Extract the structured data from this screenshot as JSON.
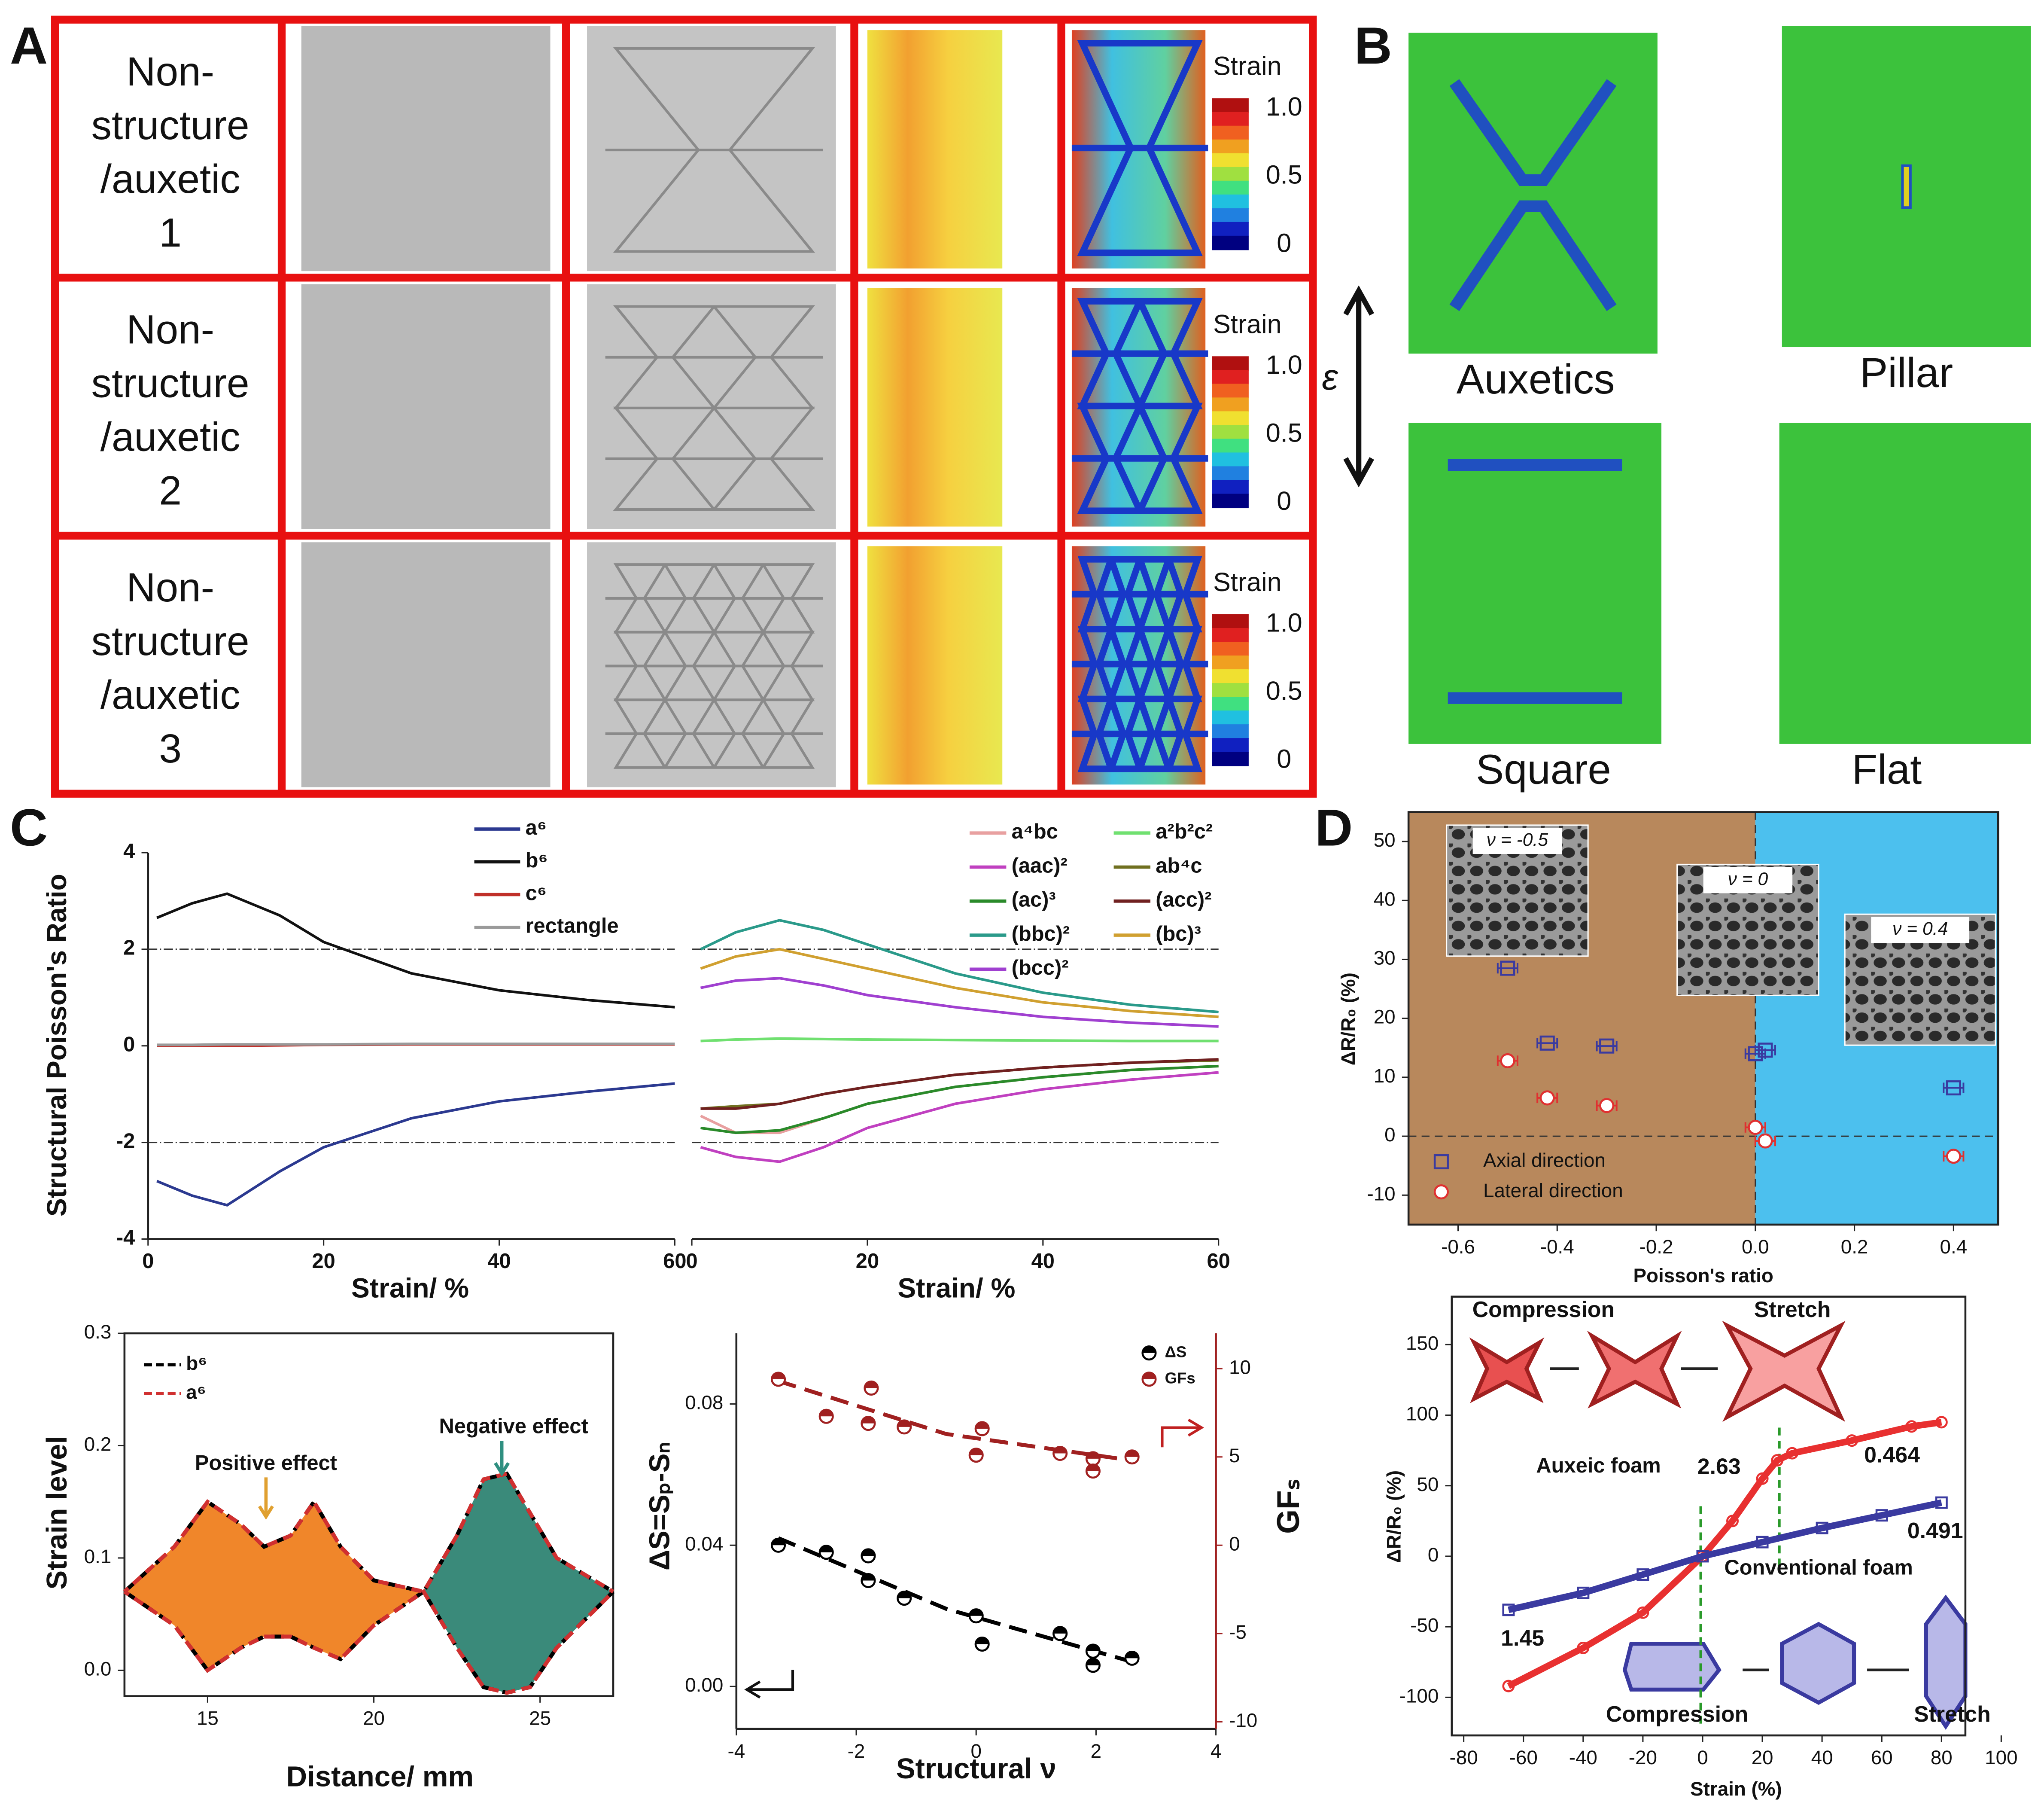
{
  "panel_labels": [
    "A",
    "B",
    "C",
    "D"
  ],
  "panel_a": {
    "rows": [
      [
        "Non-",
        "structure",
        "/auxetic",
        "1"
      ],
      [
        "Non-",
        "structure",
        "/auxetic",
        "2"
      ],
      [
        "Non-",
        "structure",
        "/auxetic",
        "3"
      ]
    ],
    "colorbar": {
      "title": "Strain",
      "ticks": [
        "1.0",
        "0.5",
        "0"
      ]
    }
  },
  "panel_b": {
    "labels": [
      "Auxetics",
      "Pillar",
      "Square",
      "Flat"
    ],
    "axis": "ε"
  },
  "chart_data": [
    {
      "type": "line",
      "xlabel": "Strain/ %",
      "ylabel": "Structural Poisson's Ratio",
      "x": [
        1,
        5,
        9,
        15,
        20,
        30,
        40,
        50,
        60
      ],
      "xlim": [
        0,
        60
      ],
      "xticks": [
        0,
        20,
        40,
        60
      ],
      "ylim": [
        -4,
        4
      ],
      "yticks": [
        -4,
        -2,
        0,
        2,
        4
      ],
      "hlines": [
        2,
        -2
      ],
      "series": [
        {
          "name": "a⁶",
          "color": "#2b3990",
          "values": [
            -2.8,
            -3.1,
            -3.3,
            -2.6,
            -2.1,
            -1.5,
            -1.15,
            -0.95,
            -0.78
          ]
        },
        {
          "name": "b⁶",
          "color": "#111111",
          "values": [
            2.65,
            2.95,
            3.15,
            2.7,
            2.15,
            1.5,
            1.15,
            0.95,
            0.8
          ]
        },
        {
          "name": "c⁶",
          "color": "#c0302a",
          "values": [
            0,
            0,
            0,
            0.01,
            0.02,
            0.03,
            0.03,
            0.03,
            0.03
          ]
        },
        {
          "name": "rectangle",
          "color": "#9a9a9a",
          "values": [
            0.02,
            0.02,
            0.03,
            0.03,
            0.03,
            0.04,
            0.04,
            0.04,
            0.04
          ]
        }
      ]
    },
    {
      "type": "line",
      "xlabel": "Strain/ %",
      "x": [
        1,
        5,
        10,
        15,
        20,
        30,
        40,
        50,
        60
      ],
      "xlim": [
        0,
        60
      ],
      "xticks": [
        0,
        20,
        40,
        60
      ],
      "ylim": [
        -4,
        4
      ],
      "hlines": [
        2,
        -2
      ],
      "series": [
        {
          "name": "a⁴bc",
          "color": "#e8a0a0",
          "values": [
            -1.45,
            -1.8,
            -1.8,
            -1.5,
            -1.2,
            -0.85,
            -0.65,
            -0.5,
            -0.42
          ]
        },
        {
          "name": "(aac)²",
          "color": "#c040c0",
          "values": [
            -2.1,
            -2.3,
            -2.4,
            -2.1,
            -1.7,
            -1.2,
            -0.9,
            -0.7,
            -0.55
          ]
        },
        {
          "name": "(ac)³",
          "color": "#2a8a2a",
          "values": [
            -1.7,
            -1.8,
            -1.75,
            -1.5,
            -1.2,
            -0.85,
            -0.65,
            -0.5,
            -0.42
          ]
        },
        {
          "name": "(bbc)²",
          "color": "#2a9a8a",
          "values": [
            2.0,
            2.35,
            2.6,
            2.4,
            2.1,
            1.5,
            1.1,
            0.85,
            0.7
          ]
        },
        {
          "name": "(bcc)²",
          "color": "#a040d0",
          "values": [
            1.2,
            1.35,
            1.4,
            1.25,
            1.05,
            0.8,
            0.6,
            0.48,
            0.4
          ]
        },
        {
          "name": "a²b²c²",
          "color": "#70e070",
          "values": [
            0.1,
            0.13,
            0.15,
            0.14,
            0.13,
            0.12,
            0.11,
            0.1,
            0.1
          ]
        },
        {
          "name": "ab⁴c",
          "color": "#707020",
          "values": [
            -1.3,
            -1.25,
            -1.2,
            -1.0,
            -0.85,
            -0.6,
            -0.45,
            -0.35,
            -0.3
          ]
        },
        {
          "name": "(acc)²",
          "color": "#702020",
          "values": [
            -1.3,
            -1.3,
            -1.2,
            -1.0,
            -0.85,
            -0.6,
            -0.45,
            -0.35,
            -0.28
          ]
        },
        {
          "name": "(bc)³",
          "color": "#d0a030",
          "values": [
            1.6,
            1.85,
            2.0,
            1.8,
            1.6,
            1.2,
            0.9,
            0.72,
            0.6
          ]
        }
      ]
    },
    {
      "type": "area",
      "xlabel": "Distance/ mm",
      "ylabel": "Strain level",
      "x": [
        12.5,
        14,
        15,
        16,
        16.7,
        17.5,
        18.2,
        19,
        20,
        21.5,
        22.5,
        23.3,
        24,
        24.7,
        25.5,
        27.2
      ],
      "xlim": [
        12.5,
        27.2
      ],
      "xticks": [
        15,
        20,
        25
      ],
      "ylim": [
        -0.023,
        0.3
      ],
      "yticks": [
        {
          "value": 0,
          "label": "0.0"
        },
        {
          "value": 0.1,
          "label": "0.1"
        },
        {
          "value": 0.2,
          "label": "0.2"
        },
        {
          "value": 0.3,
          "label": "0.3"
        }
      ],
      "fill_split": 21.5,
      "fill_colors": [
        "#f0862a",
        "#3a8a7a"
      ],
      "series": [
        {
          "name": "b⁶",
          "color": "#000000",
          "values": [
            0.07,
            0.11,
            0.15,
            0.13,
            0.11,
            0.12,
            0.15,
            0.11,
            0.08,
            0.07,
            0.12,
            0.17,
            0.175,
            0.14,
            0.1,
            0.07
          ],
          "lower": [
            0.07,
            0.04,
            0.0,
            0.02,
            0.03,
            0.03,
            0.02,
            0.01,
            0.04,
            0.07,
            0.02,
            -0.015,
            -0.02,
            -0.015,
            0.02,
            0.07
          ]
        },
        {
          "name": "a⁶",
          "color": "#d03030",
          "values": [
            0.07,
            0.11,
            0.15,
            0.13,
            0.11,
            0.12,
            0.15,
            0.11,
            0.08,
            0.07,
            0.12,
            0.17,
            0.175,
            0.14,
            0.1,
            0.07
          ],
          "lower": [
            0.07,
            0.04,
            0.0,
            0.02,
            0.03,
            0.03,
            0.02,
            0.01,
            0.04,
            0.07,
            0.02,
            -0.015,
            -0.02,
            -0.015,
            0.02,
            0.07
          ]
        }
      ],
      "annotations": [
        {
          "text": "Positive effect",
          "color": "#e0a030"
        },
        {
          "text": "Negative effect",
          "color": "#2f8f80"
        }
      ]
    },
    {
      "type": "scatter",
      "xlabel": "Structural ν",
      "ylabel": "ΔS=Sₚ-Sₙ",
      "y2label": "GFₛ",
      "xlim": [
        -4,
        4
      ],
      "xticks": [
        -4,
        -2,
        0,
        2,
        4
      ],
      "ylim": [
        -0.012,
        0.1
      ],
      "yticks": [
        {
          "value": 0,
          "label": "0.00"
        },
        {
          "value": 0.04,
          "label": "0.04"
        },
        {
          "value": 0.08,
          "label": "0.08"
        }
      ],
      "y2lim": [
        -10.4,
        12
      ],
      "y2ticks": [
        -10,
        -5,
        0,
        5,
        10
      ],
      "series": [
        {
          "name": "ΔS",
          "color": "#000000",
          "marker": "half-circle",
          "x": [
            -3.3,
            -2.5,
            -1.8,
            -1.8,
            -1.2,
            0,
            0.1,
            1.4,
            1.95,
            1.95,
            2.6
          ],
          "values": [
            0.04,
            0.038,
            0.03,
            0.037,
            0.025,
            0.02,
            0.012,
            0.015,
            0.01,
            0.006,
            0.008
          ],
          "trend": {
            "x": [
              -3.3,
              -0.5,
              2.6
            ],
            "values": [
              0.042,
              0.022,
              0.007
            ]
          }
        },
        {
          "name": "GFs",
          "color": "#a02020",
          "marker": "half-circle",
          "axis": "y2",
          "x": [
            -3.3,
            -2.5,
            -1.8,
            -1.75,
            -1.2,
            0,
            0.1,
            1.4,
            1.95,
            1.95,
            2.6
          ],
          "values": [
            9.4,
            7.3,
            6.9,
            8.9,
            6.7,
            5.1,
            6.6,
            5.2,
            4.9,
            4.2,
            5
          ],
          "trend": {
            "x": [
              -3.3,
              -0.5,
              2.6
            ],
            "values": [
              9.3,
              6.3,
              4.8
            ]
          }
        }
      ]
    },
    {
      "type": "scatter",
      "xlabel": "Poisson's ratio",
      "ylabel": "ΔR/R₀ (%)",
      "xlim": [
        -0.7,
        0.49
      ],
      "xticks": [
        -0.6,
        -0.4,
        -0.2,
        {
          "value": 0,
          "label": "0.0"
        },
        0.2,
        0.4
      ],
      "ylim": [
        -15,
        55
      ],
      "yticks": [
        -10,
        0,
        10,
        20,
        30,
        40,
        50
      ],
      "region_colors": [
        "#b8885c",
        "#4cc0ee"
      ],
      "insets": [
        "ν = -0.5",
        "ν = 0",
        "ν = 0.4"
      ],
      "series": [
        {
          "name": "Axial direction",
          "color": "#3a3aa0",
          "marker": "square",
          "x": [
            -0.5,
            -0.42,
            -0.3,
            0.0,
            0.02,
            0.4
          ],
          "xerr": [
            0.02,
            0.02,
            0.02,
            0.02,
            0.02,
            0.02
          ],
          "values": [
            28.5,
            15.8,
            15.3,
            14.0,
            14.6,
            8.2
          ]
        },
        {
          "name": "Lateral direction",
          "color": "#e03030",
          "marker": "circle",
          "x": [
            -0.5,
            -0.42,
            -0.3,
            0.0,
            0.02,
            0.4
          ],
          "xerr": [
            0.02,
            0.02,
            0.02,
            0.02,
            0.02,
            0.02
          ],
          "values": [
            12.8,
            6.5,
            5.2,
            1.5,
            -0.8,
            -3.4
          ]
        }
      ]
    },
    {
      "type": "scatter",
      "xlabel": "Strain (%)",
      "ylabel": "ΔR/R₀ (%)",
      "xlim": [
        -84,
        88
      ],
      "xticks": [
        -80,
        -60,
        -40,
        -20,
        0,
        20,
        40,
        60,
        80,
        100
      ],
      "ylim": [
        -127,
        184
      ],
      "yticks": [
        -100,
        -50,
        0,
        50,
        100,
        150
      ],
      "series": [
        {
          "name": "Auxeic foam",
          "color": "#e83030",
          "marker": "circle",
          "connect": true,
          "x": [
            -65,
            -40,
            -20,
            0,
            10,
            20,
            25,
            30,
            50,
            70,
            80
          ],
          "values": [
            -92,
            -65,
            -40,
            0,
            25,
            55,
            68,
            73,
            82,
            92,
            95
          ]
        },
        {
          "name": "Conventional foam",
          "color": "#3a3aa0",
          "marker": "square",
          "connect": true,
          "x": [
            -65,
            -40,
            -20,
            0,
            20,
            40,
            60,
            80
          ],
          "values": [
            -38,
            -26,
            -13,
            0,
            10,
            20,
            29,
            38
          ]
        }
      ],
      "annotations": [
        {
          "text": "Compression",
          "color": "#c83030"
        },
        {
          "text": "Stretch",
          "color": "#c83030"
        },
        {
          "text": "Compression",
          "color": "#c83030"
        },
        {
          "text": "Stretch",
          "color": "#c83030"
        },
        {
          "text": "2.63",
          "color": "#e03030"
        },
        {
          "text": "0.464",
          "color": "#e03030"
        },
        {
          "text": "1.45",
          "color": "#e03030"
        },
        {
          "text": "0.491",
          "color": "#3a3aa0"
        }
      ]
    }
  ]
}
